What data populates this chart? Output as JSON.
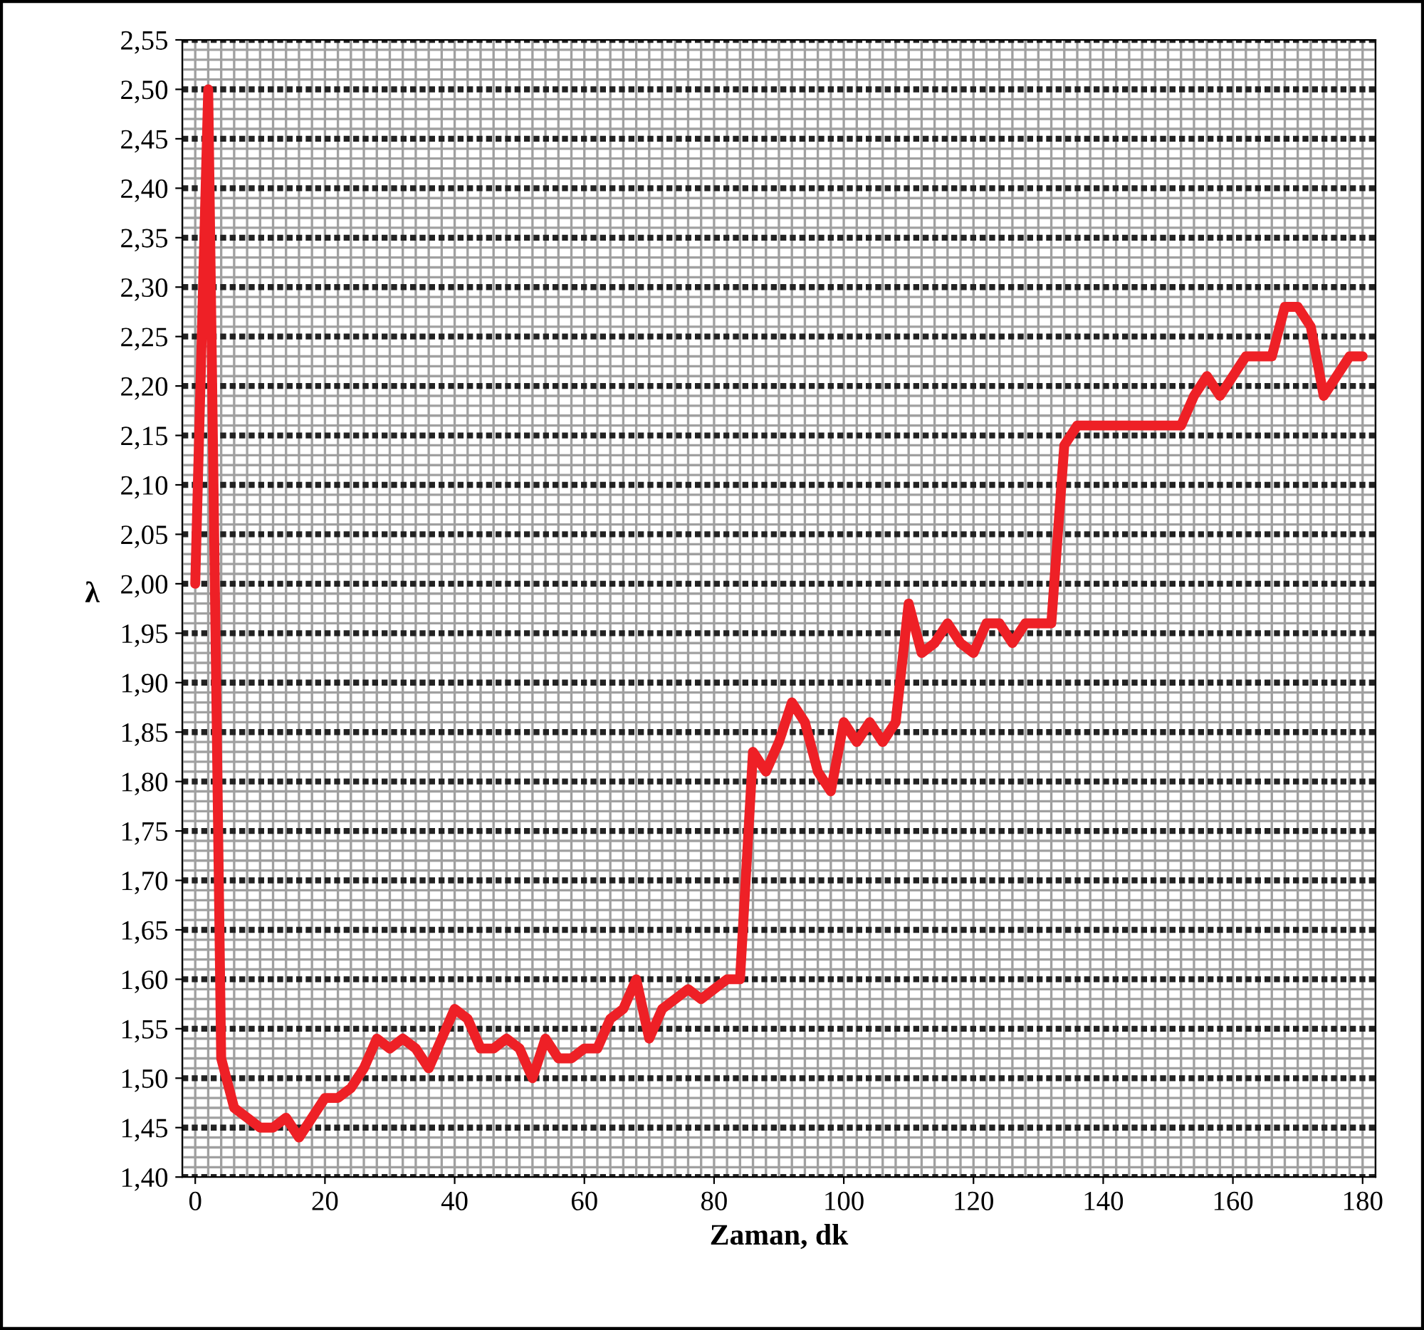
{
  "chart_data": {
    "type": "line",
    "xlabel": "Zaman, dk",
    "ylabel": "λ",
    "x": [
      0,
      2,
      4,
      6,
      8,
      10,
      12,
      14,
      16,
      18,
      20,
      22,
      24,
      26,
      28,
      30,
      32,
      34,
      36,
      38,
      40,
      42,
      44,
      46,
      48,
      50,
      52,
      54,
      56,
      58,
      60,
      62,
      64,
      66,
      68,
      70,
      72,
      74,
      76,
      78,
      80,
      82,
      84,
      86,
      88,
      90,
      92,
      94,
      96,
      98,
      100,
      102,
      104,
      106,
      108,
      110,
      112,
      114,
      116,
      118,
      120,
      122,
      124,
      126,
      128,
      130,
      132,
      134,
      136,
      138,
      140,
      142,
      144,
      146,
      148,
      150,
      152,
      154,
      156,
      158,
      160,
      162,
      164,
      166,
      168,
      170,
      172,
      174,
      176,
      178,
      180
    ],
    "series": [
      {
        "color": "#ee2026",
        "values": [
          2.0,
          2.5,
          1.52,
          1.47,
          1.46,
          1.45,
          1.45,
          1.46,
          1.44,
          1.46,
          1.48,
          1.48,
          1.49,
          1.51,
          1.54,
          1.53,
          1.54,
          1.53,
          1.51,
          1.54,
          1.57,
          1.56,
          1.53,
          1.53,
          1.54,
          1.53,
          1.5,
          1.54,
          1.52,
          1.52,
          1.53,
          1.53,
          1.56,
          1.57,
          1.6,
          1.54,
          1.57,
          1.58,
          1.59,
          1.58,
          1.59,
          1.6,
          1.6,
          1.83,
          1.81,
          1.84,
          1.88,
          1.86,
          1.81,
          1.79,
          1.86,
          1.84,
          1.86,
          1.84,
          1.86,
          1.98,
          1.93,
          1.94,
          1.96,
          1.94,
          1.93,
          1.96,
          1.96,
          1.94,
          1.96,
          1.96,
          1.96,
          2.14,
          2.16,
          2.16,
          2.16,
          2.16,
          2.16,
          2.16,
          2.16,
          2.16,
          2.16,
          2.19,
          2.21,
          2.19,
          2.21,
          2.23,
          2.23,
          2.23,
          2.28,
          2.28,
          2.26,
          2.19,
          2.21,
          2.23,
          2.23
        ]
      }
    ],
    "xlim": [
      -2,
      182
    ],
    "xticks": [
      0,
      20,
      40,
      60,
      80,
      100,
      120,
      140,
      160,
      180
    ],
    "ylim": [
      1.4,
      2.55
    ],
    "yticks": [
      {
        "value": 1.4,
        "label": "1,40"
      },
      {
        "value": 1.45,
        "label": "1,45"
      },
      {
        "value": 1.5,
        "label": "1,50"
      },
      {
        "value": 1.55,
        "label": "1,55"
      },
      {
        "value": 1.6,
        "label": "1,60"
      },
      {
        "value": 1.65,
        "label": "1,65"
      },
      {
        "value": 1.7,
        "label": "1,70"
      },
      {
        "value": 1.75,
        "label": "1,75"
      },
      {
        "value": 1.8,
        "label": "1,80"
      },
      {
        "value": 1.85,
        "label": "1,85"
      },
      {
        "value": 1.9,
        "label": "1,90"
      },
      {
        "value": 1.95,
        "label": "1,95"
      },
      {
        "value": 2.0,
        "label": "2,00"
      },
      {
        "value": 2.05,
        "label": "2,05"
      },
      {
        "value": 2.1,
        "label": "2,10"
      },
      {
        "value": 2.15,
        "label": "2,15"
      },
      {
        "value": 2.2,
        "label": "2,20"
      },
      {
        "value": 2.25,
        "label": "2,25"
      },
      {
        "value": 2.3,
        "label": "2,30"
      },
      {
        "value": 2.35,
        "label": "2,35"
      },
      {
        "value": 2.4,
        "label": "2,40"
      },
      {
        "value": 2.45,
        "label": "2,45"
      },
      {
        "value": 2.5,
        "label": "2,50"
      },
      {
        "value": 2.55,
        "label": "2,55"
      }
    ],
    "grid": true,
    "line_style": "solid",
    "marker": "none"
  }
}
